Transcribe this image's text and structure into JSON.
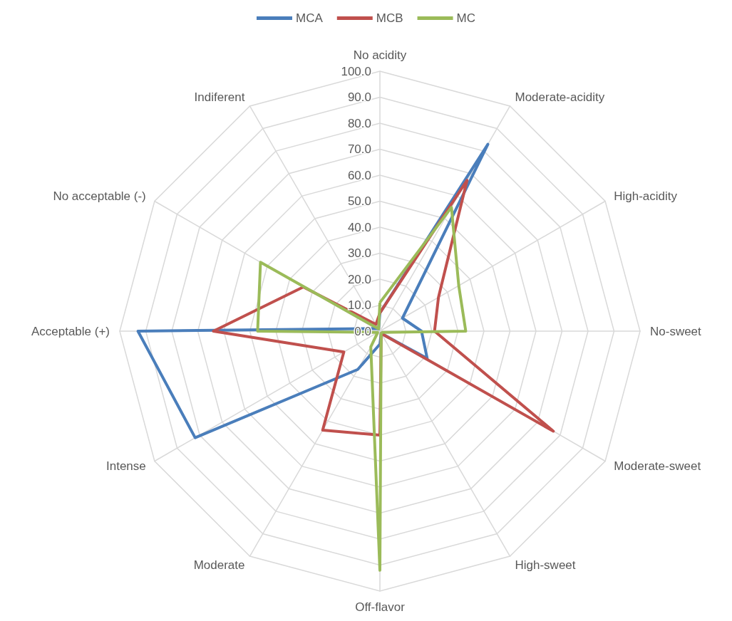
{
  "chart_data": {
    "type": "radar",
    "categories": [
      "No acidity",
      "Moderate-acidity",
      "High-acidity",
      "No-sweet",
      "Moderate-sweet",
      "High-sweet",
      "Off-flavor",
      "Moderate",
      "Intense",
      "Acceptable (+)",
      "No acceptable (-)",
      "Indiferent"
    ],
    "series": [
      {
        "name": "MCA",
        "color": "#4a7ebb",
        "values": [
          7,
          83,
          10,
          16,
          21,
          1,
          5,
          17,
          82,
          93,
          2,
          1
        ]
      },
      {
        "name": "MCB",
        "color": "#c0504d",
        "values": [
          7,
          67,
          26,
          21,
          77,
          1,
          40,
          44,
          16,
          64,
          34,
          3
        ]
      },
      {
        "name": "MC",
        "color": "#9bbb59",
        "values": [
          11,
          55,
          35,
          33,
          1,
          1,
          92,
          7,
          1,
          47,
          53,
          1
        ]
      }
    ],
    "ylim": [
      0,
      100
    ],
    "yticks": [
      {
        "value": 0,
        "label": "0.0"
      },
      {
        "value": 10,
        "label": "10.0"
      },
      {
        "value": 20,
        "label": "20.0"
      },
      {
        "value": 30,
        "label": "30.0"
      },
      {
        "value": 40,
        "label": "40.0"
      },
      {
        "value": 50,
        "label": "50.0"
      },
      {
        "value": 60,
        "label": "60.0"
      },
      {
        "value": 70,
        "label": "70.0"
      },
      {
        "value": 80,
        "label": "80.0"
      },
      {
        "value": 90,
        "label": "90.0"
      },
      {
        "value": 100,
        "label": "100.0"
      }
    ],
    "grid": true,
    "legend": "top",
    "marker": "none",
    "line_style": "solid"
  }
}
